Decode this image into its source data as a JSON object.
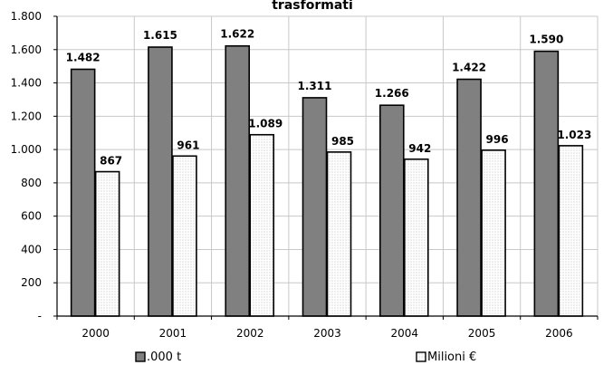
{
  "chart_data": {
    "type": "bar",
    "title": "trasformati",
    "xlabel": "",
    "ylabel": "",
    "categories": [
      "2000",
      "2001",
      "2002",
      "2003",
      "2004",
      "2005",
      "2006"
    ],
    "series": [
      {
        "name": ".000 t",
        "values": [
          1482,
          1615,
          1622,
          1311,
          1266,
          1422,
          1590
        ],
        "labels": [
          "1.482",
          "1.615",
          "1.622",
          "1.311",
          "1.266",
          "1.422",
          "1.590"
        ],
        "color": "#808080"
      },
      {
        "name": "Milioni €",
        "values": [
          867,
          961,
          1089,
          985,
          942,
          996,
          1023
        ],
        "labels": [
          "867",
          "961",
          "1.089",
          "985",
          "942",
          "996",
          "1.023"
        ],
        "color": "#ffffff"
      }
    ],
    "ylim": [
      0,
      1800
    ],
    "yticks": [
      0,
      200,
      400,
      600,
      800,
      1000,
      1200,
      1400,
      1600,
      1800
    ],
    "ytick_labels": [
      "-",
      "200",
      "400",
      "600",
      "800",
      "1.000",
      "1.200",
      "1.400",
      "1.600",
      "1.800"
    ],
    "grid": true,
    "legend_position": "bottom"
  }
}
